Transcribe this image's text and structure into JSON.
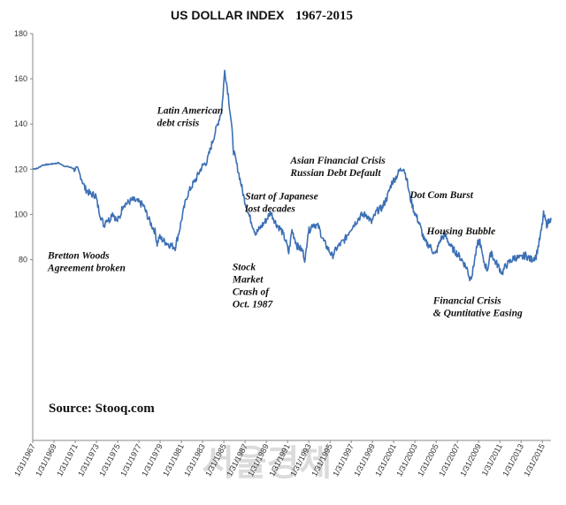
{
  "chart_data": {
    "type": "line",
    "title": "US DOLLAR INDEX",
    "title_years": "1967-2015",
    "ylim": [
      0,
      180
    ],
    "yticks": [
      80,
      100,
      120,
      140,
      160,
      180
    ],
    "xlim": [
      1967.08,
      2015.9
    ],
    "xtick_labels": [
      "1/31/1967",
      "1/31/1969",
      "1/31/1971",
      "1/31/1973",
      "1/31/1975",
      "1/31/1977",
      "1/31/1979",
      "1/31/1981",
      "1/31/1983",
      "1/31/1985",
      "1/31/1987",
      "1/31/1989",
      "1/31/1991",
      "1/31/1993",
      "1/31/1995",
      "1/31/1997",
      "1/31/1999",
      "1/31/2001",
      "1/31/2003",
      "1/31/2005",
      "1/31/2007",
      "1/31/2009",
      "1/31/2011",
      "1/31/2013",
      "1/31/2015"
    ],
    "grid": false,
    "line_color": "#3c6fb4",
    "series": [
      {
        "x": [
          1967.08,
          1967.5,
          1968.0,
          1968.5,
          1969.0,
          1969.5,
          1970.0,
          1970.5,
          1971.0,
          1971.3,
          1971.6,
          1972.0,
          1972.5,
          1973.0,
          1973.2,
          1973.5,
          1973.8,
          1974.0,
          1974.3,
          1974.6,
          1975.0,
          1975.3,
          1975.6,
          1976.0,
          1976.5,
          1977.0,
          1977.5,
          1978.0,
          1978.3,
          1978.6,
          1978.8,
          1979.0,
          1979.5,
          1980.0,
          1980.5,
          1980.9,
          1981.2,
          1981.6,
          1982.0,
          1982.5,
          1983.0,
          1983.5,
          1984.0,
          1984.5,
          1984.9,
          1985.17,
          1985.5,
          1985.8,
          1986.0,
          1986.5,
          1987.0,
          1987.5,
          1987.9,
          1988.1,
          1988.5,
          1989.0,
          1989.5,
          1990.0,
          1990.5,
          1990.9,
          1991.2,
          1991.5,
          1992.0,
          1992.5,
          1992.75,
          1993.0,
          1993.5,
          1994.0,
          1994.5,
          1995.0,
          1995.3,
          1995.7,
          1996.0,
          1996.5,
          1997.0,
          1997.5,
          1998.0,
          1998.5,
          1999.0,
          1999.5,
          2000.0,
          2000.5,
          2000.9,
          2001.3,
          2001.6,
          2002.0,
          2002.3,
          2002.6,
          2003.0,
          2003.5,
          2004.0,
          2004.5,
          2005.0,
          2005.5,
          2005.9,
          2006.5,
          2007.0,
          2007.5,
          2008.0,
          2008.25,
          2008.5,
          2008.7,
          2009.0,
          2009.2,
          2009.5,
          2009.9,
          2010.3,
          2010.5,
          2010.9,
          2011.3,
          2011.6,
          2012.0,
          2012.5,
          2013.0,
          2013.5,
          2014.0,
          2014.5,
          2014.8,
          2015.0,
          2015.2,
          2015.5,
          2015.9
        ],
        "y": [
          120.2,
          120.3,
          121.8,
          122.1,
          122.4,
          122.8,
          121.5,
          121.0,
          120.2,
          119.5,
          117.0,
          111.5,
          109.0,
          108.5,
          104.0,
          99.0,
          95.0,
          98.0,
          97.5,
          101.0,
          97.0,
          99.0,
          104.5,
          105.0,
          106.5,
          105.5,
          104.0,
          98.0,
          95.0,
          92.5,
          87.0,
          90.0,
          88.0,
          86.5,
          85.5,
          93.0,
          100.0,
          108.0,
          112.0,
          116.0,
          121.0,
          123.5,
          132.0,
          140.0,
          146.5,
          163.8,
          153.0,
          140.0,
          128.0,
          118.0,
          107.0,
          99.0,
          94.0,
          91.5,
          94.0,
          97.0,
          101.0,
          96.0,
          93.0,
          88.5,
          83.0,
          93.0,
          86.0,
          84.0,
          79.5,
          92.0,
          96.0,
          94.5,
          88.0,
          84.0,
          81.5,
          85.0,
          86.5,
          89.0,
          93.5,
          96.5,
          99.5,
          100.0,
          96.5,
          101.5,
          103.0,
          108.0,
          114.0,
          116.5,
          119.0,
          121.0,
          116.0,
          108.0,
          101.5,
          96.0,
          88.0,
          86.0,
          82.0,
          89.0,
          91.0,
          85.5,
          83.0,
          80.0,
          76.0,
          71.5,
          74.0,
          80.0,
          87.0,
          88.5,
          80.0,
          75.5,
          84.0,
          80.0,
          77.5,
          74.0,
          77.0,
          79.0,
          81.0,
          80.5,
          82.0,
          80.0,
          81.5,
          88.0,
          93.0,
          100.0,
          95.5,
          98.5
        ]
      }
    ],
    "annotations": [
      {
        "lines": [
          "Latin American",
          "debt crisis"
        ],
        "x": 1978.8,
        "y": 144.5
      },
      {
        "lines": [
          "Asian Financial Crisis",
          "Russian Debt Default"
        ],
        "x": 1991.35,
        "y": 122.5
      },
      {
        "lines": [
          "Start of Japanese",
          "lost decades"
        ],
        "x": 1987.1,
        "y": 106.7
      },
      {
        "lines": [
          "Dot Com Burst"
        ],
        "x": 2002.6,
        "y": 107.2
      },
      {
        "lines": [
          "Housing Bubble"
        ],
        "x": 2004.2,
        "y": 91.1
      },
      {
        "lines": [
          "Bretton Woods",
          "Agreement broken"
        ],
        "x": 1968.5,
        "y": 80.5
      },
      {
        "lines": [
          "Stock",
          "Market",
          "Crash of",
          "Oct. 1987"
        ],
        "x": 1985.9,
        "y": 75.4
      },
      {
        "lines": [
          "Financial Crisis",
          "& Quntitative Easing"
        ],
        "x": 2004.8,
        "y": 60.5
      }
    ],
    "source_text": "Source: Stooq.com",
    "watermark": "서울경제"
  }
}
